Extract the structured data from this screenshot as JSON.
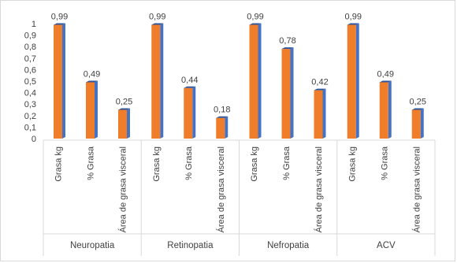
{
  "chart_data": {
    "type": "bar",
    "style": "3d-clustered-column",
    "groups": [
      {
        "name": "Neuropatia",
        "bars": [
          {
            "label": "Grasa kg",
            "value": 0.99,
            "display": "0,99"
          },
          {
            "label": "% Grasa",
            "value": 0.49,
            "display": "0,49"
          },
          {
            "label": "Área de grasa visceral",
            "value": 0.25,
            "display": "0,25"
          }
        ]
      },
      {
        "name": "Retinopatia",
        "bars": [
          {
            "label": "Grasa kg",
            "value": 0.99,
            "display": "0,99"
          },
          {
            "label": "% Grasa",
            "value": 0.44,
            "display": "0,44"
          },
          {
            "label": "Área de grasa visceral",
            "value": 0.18,
            "display": "0,18"
          }
        ]
      },
      {
        "name": "Nefropatia",
        "bars": [
          {
            "label": "Grasa kg",
            "value": 0.99,
            "display": "0,99"
          },
          {
            "label": "% Grasa",
            "value": 0.78,
            "display": "0,78"
          },
          {
            "label": "Área de grasa visceral",
            "value": 0.42,
            "display": "0,42"
          }
        ]
      },
      {
        "name": "ACV",
        "bars": [
          {
            "label": "Grasa kg",
            "value": 0.99,
            "display": "0,99"
          },
          {
            "label": "% Grasa",
            "value": 0.49,
            "display": "0,49"
          },
          {
            "label": "Área de grasa visceral",
            "value": 0.25,
            "display": "0,25"
          }
        ]
      }
    ],
    "y_ticks": [
      "0",
      "0,1",
      "0,2",
      "0,3",
      "0,4",
      "0,5",
      "0,6",
      "0,7",
      "0,8",
      "0,9",
      "1"
    ],
    "ylim": [
      0,
      1
    ],
    "grid": false,
    "legend": "none",
    "colors": {
      "front": "#f07d2a",
      "side": "#4472c4",
      "top": "#2f5597"
    }
  }
}
